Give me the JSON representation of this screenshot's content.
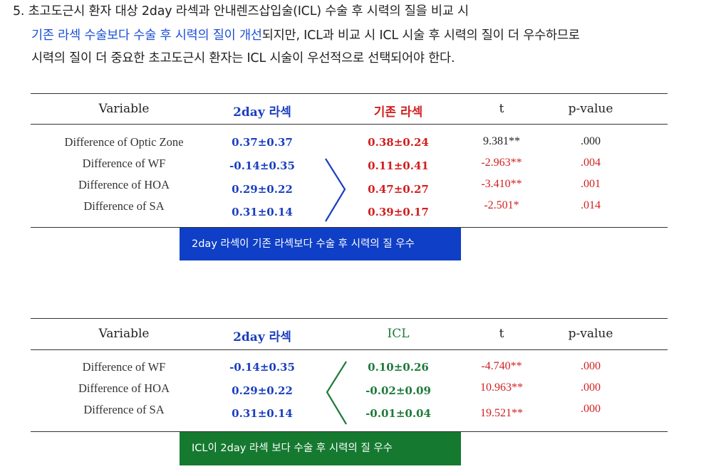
{
  "heading": {
    "line1": "5. 초고도근시 환자 대상 2day 라섹과 안내렌즈삽입술(ICL) 수술 후 시력의 질을 비교 시",
    "line2_highlight": "기존 라섹 수술보다 수술 후 시력의 질이 개선",
    "line2_rest": "되지만, ICL과 비교 시 ICL 시술 후 시력의 질이 더 우수하므로",
    "line3": "시력의 질이 더 중요한 초고도근시 환자는 ICL 시술이 우선적으로 선택되어야 한다."
  },
  "table1": {
    "headers": [
      "Variable",
      "2day 라섹",
      "기존 라섹",
      "t",
      "p-value"
    ],
    "rows": [
      {
        "variable": "Difference of Optic Zone",
        "a": "0.37±0.37",
        "b": "0.38±0.24",
        "t": "9.381**",
        "p": ".000"
      },
      {
        "variable": "Difference of WF",
        "a": "-0.14±0.35",
        "b": "0.11±0.41",
        "t": "-2.963**",
        "p": ".004"
      },
      {
        "variable": "Difference of HOA",
        "a": "0.29±0.22",
        "b": "0.47±0.27",
        "t": "-3.410**",
        "p": ".001"
      },
      {
        "variable": "Difference of SA",
        "a": "0.31±0.14",
        "b": "0.39±0.17",
        "t": "-2.501*",
        "p": ".014"
      }
    ],
    "banner": "2day 라섹이 기존 라섹보다 수술 후 시력의 질 우수"
  },
  "table2": {
    "headers": [
      "Variable",
      "2day 라섹",
      "ICL",
      "t",
      "p-value"
    ],
    "rows": [
      {
        "variable": "Difference of WF",
        "a": "-0.14±0.35",
        "b": "0.10±0.26",
        "t": "-4.740**",
        "p": ".000"
      },
      {
        "variable": "Difference of HOA",
        "a": "0.29±0.22",
        "b": "-0.02±0.09",
        "t": "10.963**",
        "p": ".000"
      },
      {
        "variable": "Difference of SA",
        "a": "0.31±0.14",
        "b": "-0.01±0.04",
        "t": "19.521**",
        "p": ".000"
      }
    ],
    "banner": "ICL이 2day 라섹 보다 수술 후 시력의 질 우수"
  },
  "colors": {
    "blue": "#1a3fbf",
    "red": "#d21f1f",
    "green": "#1f7a3a",
    "blue_banner": "#0f3fc6",
    "green_banner": "#157a30"
  }
}
